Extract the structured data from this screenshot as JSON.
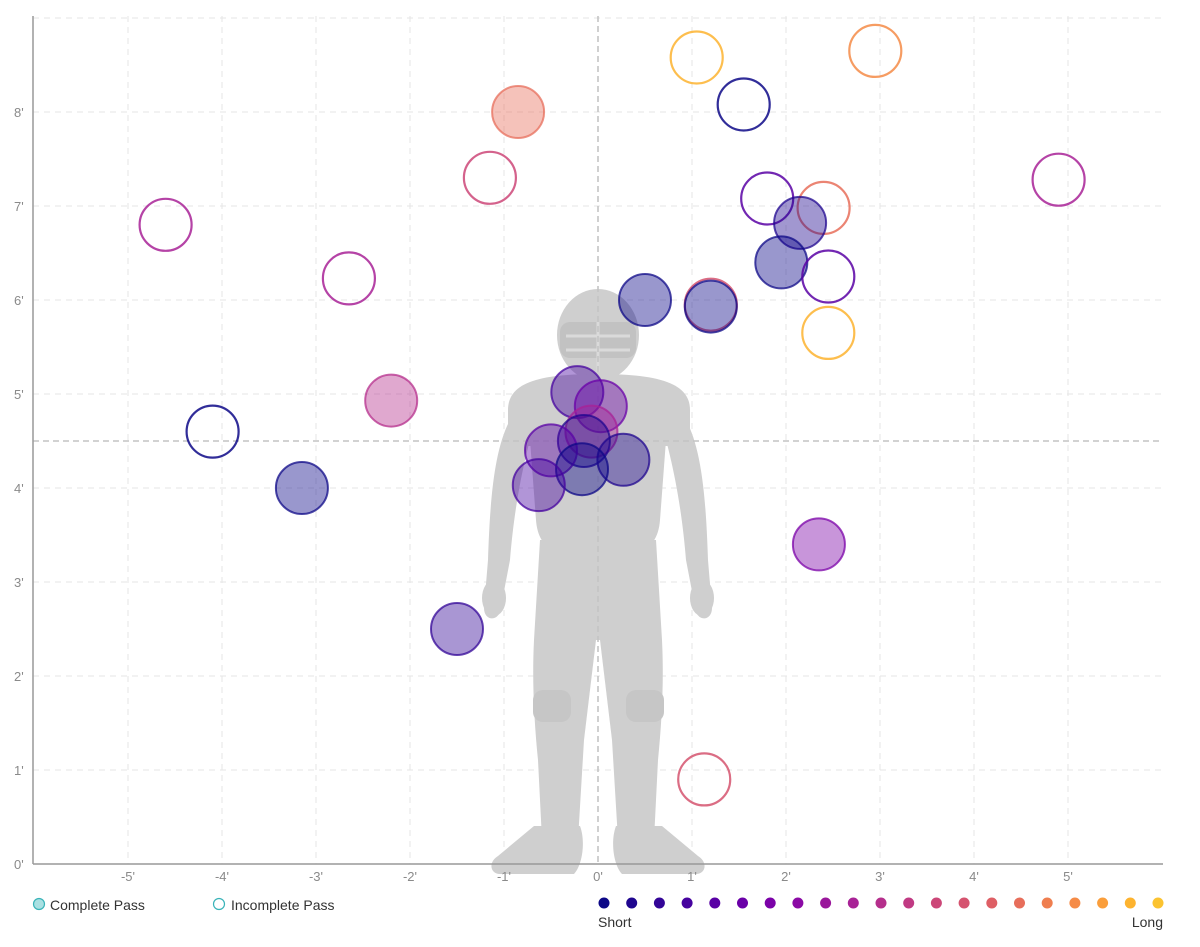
{
  "chart_data": {
    "type": "scatter",
    "xlim": [
      -6.0,
      6.0
    ],
    "ylim": [
      0,
      9.0
    ],
    "x_ticks": [
      "-5'",
      "-4'",
      "-3'",
      "-2'",
      "-1'",
      "0'",
      "1'",
      "2'",
      "3'",
      "4'",
      "5'"
    ],
    "y_ticks": [
      "0'",
      "1'",
      "2'",
      "3'",
      "4'",
      "5'",
      "6'",
      "7'",
      "8'"
    ],
    "grid": true,
    "strike_zone_center": {
      "x": 0,
      "y": 4.5
    },
    "palette": [
      "#0d0887",
      "#1f068f",
      "#330597",
      "#46039f",
      "#5901a5",
      "#6a00a8",
      "#7b02a8",
      "#8b0aa5",
      "#9a179b",
      "#a82296",
      "#b52f8c",
      "#c03a83",
      "#cc4778",
      "#d5536f",
      "#de5f65",
      "#e76e5b",
      "#ef7e4f",
      "#f58b47",
      "#fa9e3b",
      "#fdb32f",
      "#fbc330"
    ],
    "points": [
      {
        "x": 1.05,
        "y": 8.58,
        "complete": false,
        "depth": 19
      },
      {
        "x": 2.95,
        "y": 8.65,
        "complete": false,
        "depth": 17
      },
      {
        "x": 1.55,
        "y": 8.08,
        "complete": false,
        "depth": 0
      },
      {
        "x": -0.85,
        "y": 8.0,
        "complete": true,
        "depth": 15
      },
      {
        "x": -1.15,
        "y": 7.3,
        "complete": false,
        "depth": 12
      },
      {
        "x": 4.9,
        "y": 7.28,
        "complete": false,
        "depth": 9
      },
      {
        "x": 1.8,
        "y": 7.08,
        "complete": false,
        "depth": 4
      },
      {
        "x": 2.4,
        "y": 6.98,
        "complete": false,
        "depth": 15
      },
      {
        "x": 2.15,
        "y": 6.82,
        "complete": true,
        "depth": 1
      },
      {
        "x": -4.6,
        "y": 6.8,
        "complete": false,
        "depth": 9
      },
      {
        "x": 1.95,
        "y": 6.4,
        "complete": true,
        "depth": 0
      },
      {
        "x": 2.45,
        "y": 6.25,
        "complete": false,
        "depth": 4
      },
      {
        "x": -2.65,
        "y": 6.23,
        "complete": false,
        "depth": 9
      },
      {
        "x": 0.5,
        "y": 6.0,
        "complete": true,
        "depth": 0
      },
      {
        "x": 1.2,
        "y": 5.95,
        "complete": false,
        "depth": 13
      },
      {
        "x": 1.2,
        "y": 5.93,
        "complete": true,
        "depth": 0
      },
      {
        "x": 2.45,
        "y": 5.65,
        "complete": false,
        "depth": 19
      },
      {
        "x": -2.2,
        "y": 4.93,
        "complete": true,
        "depth": 10
      },
      {
        "x": -0.22,
        "y": 5.02,
        "complete": true,
        "depth": 3
      },
      {
        "x": 0.03,
        "y": 4.87,
        "complete": true,
        "depth": 5
      },
      {
        "x": -0.07,
        "y": 4.6,
        "complete": true,
        "depth": 9
      },
      {
        "x": -4.1,
        "y": 4.6,
        "complete": false,
        "depth": 0
      },
      {
        "x": -0.15,
        "y": 4.5,
        "complete": true,
        "depth": 1
      },
      {
        "x": -0.5,
        "y": 4.4,
        "complete": true,
        "depth": 4
      },
      {
        "x": 0.27,
        "y": 4.3,
        "complete": true,
        "depth": 1
      },
      {
        "x": -0.17,
        "y": 4.2,
        "complete": true,
        "depth": 0
      },
      {
        "x": -0.63,
        "y": 4.03,
        "complete": true,
        "depth": 3
      },
      {
        "x": -3.15,
        "y": 4.0,
        "complete": true,
        "depth": 0
      },
      {
        "x": 2.35,
        "y": 3.4,
        "complete": true,
        "depth": 6
      },
      {
        "x": -1.5,
        "y": 2.5,
        "complete": true,
        "depth": 2
      },
      {
        "x": 1.13,
        "y": 0.9,
        "complete": false,
        "depth": 13
      }
    ]
  },
  "legend": {
    "complete_label": "Complete Pass",
    "incomplete_label": "Incomplete Pass",
    "complete_color": "#39b3b8",
    "short_label": "Short",
    "long_label": "Long"
  },
  "colors": {
    "axis": "#999999",
    "grid": "#e6e6e6",
    "center_line": "#c4c4c4",
    "silhouette": "#cfcfcf"
  },
  "player_silhouette_icon": "football-player-silhouette-icon"
}
